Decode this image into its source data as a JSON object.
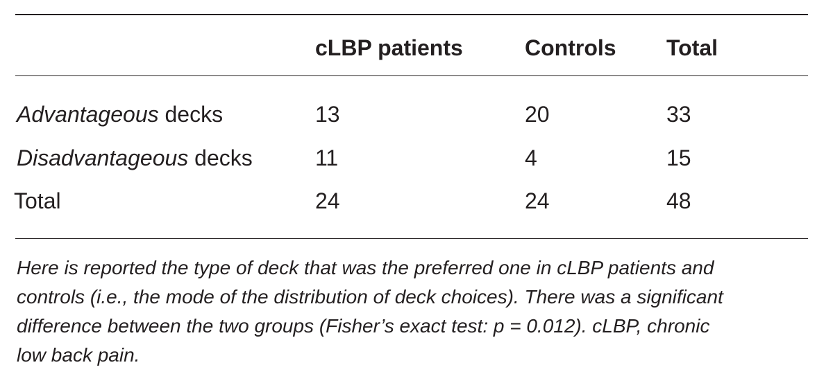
{
  "table": {
    "headers": [
      "",
      "cLBP patients",
      "Controls",
      "Total"
    ],
    "rows": [
      {
        "label_italic": "Advantageous",
        "label_rest": " decks",
        "values": [
          "13",
          "20",
          "33"
        ]
      },
      {
        "label_italic": "Disadvantageous",
        "label_rest": " decks",
        "values": [
          "11",
          "4",
          "15"
        ]
      },
      {
        "label_italic": "",
        "label_rest": "Total",
        "values": [
          "24",
          "24",
          "48"
        ]
      }
    ]
  },
  "footnote": {
    "lines": [
      "Here is reported the type of deck that was the preferred one in cLBP patients and",
      "controls (i.e., the mode of the distribution of deck choices). There was a significant",
      "difference between the two groups (Fisher’s exact test: p = 0.012). cLBP, chronic",
      "low back pain."
    ]
  }
}
